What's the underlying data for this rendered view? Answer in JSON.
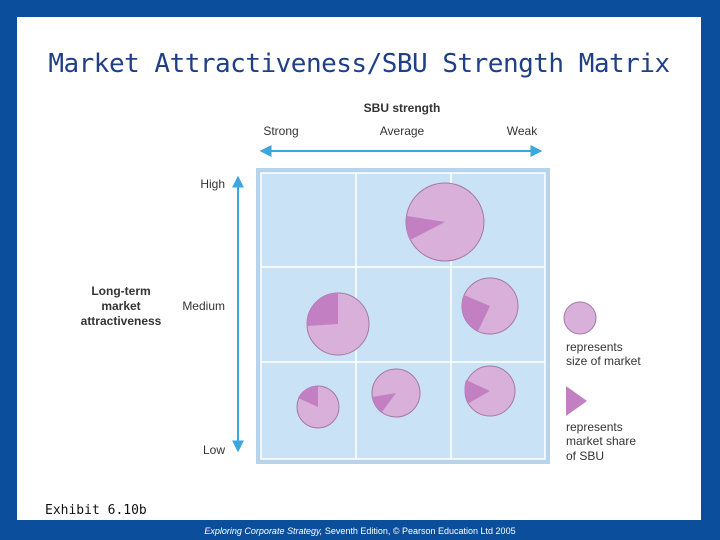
{
  "slide": {
    "title": "Market Attractiveness/SBU Strength Matrix",
    "caption": "Exhibit 6.10b",
    "footer_book": "Exploring Corporate Strategy,",
    "footer_rest": " Seventh Edition, © Pearson Education Ltd 2005"
  },
  "matrix": {
    "x_axis_title": "SBU strength",
    "x_labels": [
      "Strong",
      "Average",
      "Weak"
    ],
    "y_axis_title_lines": [
      "Long-term",
      "market",
      "attractiveness"
    ],
    "y_labels": [
      "High",
      "Medium",
      "Low"
    ],
    "legend_size_lines": [
      "represents",
      "size of market"
    ],
    "legend_share_lines": [
      "represents",
      "market share",
      "of SBU"
    ]
  },
  "colors": {
    "background": "#0b4f9c",
    "grid_fill": "#c9e2f5",
    "grid_line": "#ffffff",
    "bubble": "#d8b0d9",
    "share": "#c280c3",
    "axis": "#3aa7df",
    "title": "#1f3f86"
  }
}
